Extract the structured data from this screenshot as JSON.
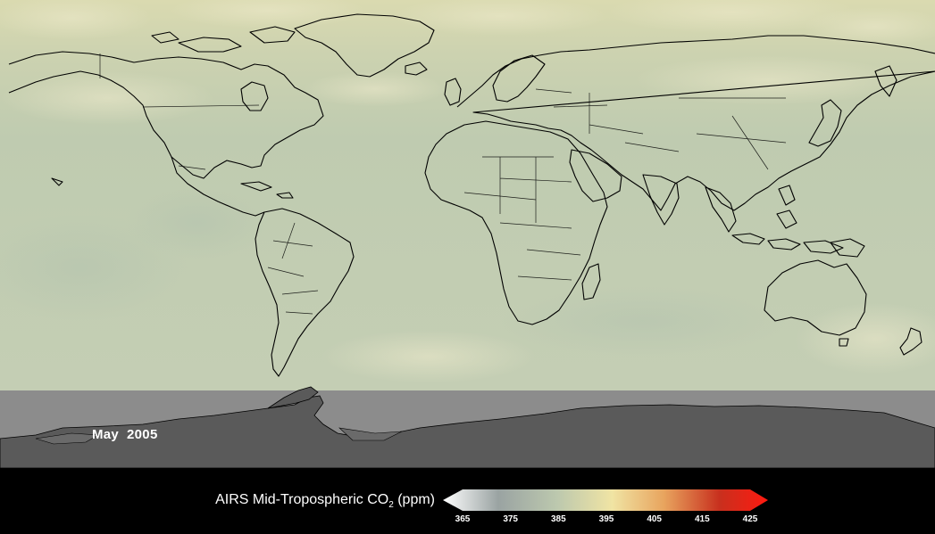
{
  "date_label": "May  2005",
  "legend": {
    "title_prefix": "AIRS Mid-Tropospheric CO",
    "title_subscript": "2",
    "title_suffix": " (ppm)",
    "ticks": [
      "365",
      "375",
      "385",
      "395",
      "405",
      "415",
      "425"
    ],
    "range": [
      365,
      425
    ],
    "colors": [
      "#ffffff",
      "#9aa3a2",
      "#bcc8ae",
      "#f0e4a4",
      "#e8a45e",
      "#c8301e",
      "#ff1a10"
    ]
  },
  "map": {
    "ocean_color": "#c4d0b4",
    "high_latitude_tint": "#dcdcb0",
    "no_data_color": "#8c8c8c",
    "antarctica_color": "#5a5a5a",
    "coastline_color": "#000000"
  }
}
